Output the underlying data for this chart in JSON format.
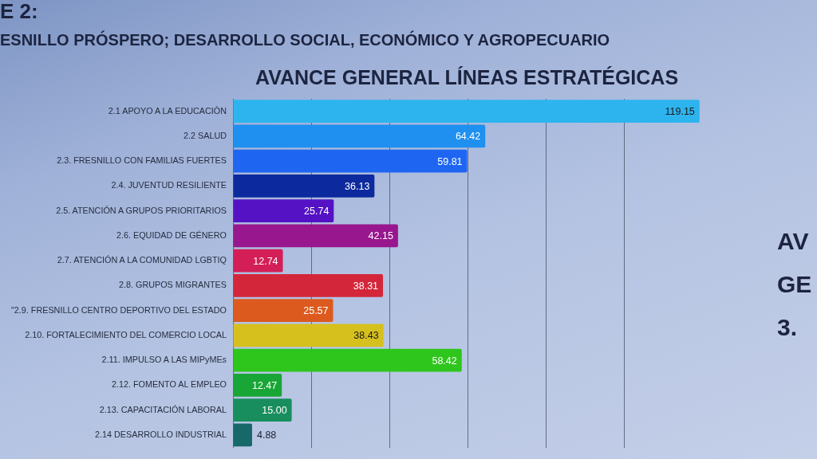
{
  "chart_data": {
    "type": "bar",
    "orientation": "horizontal",
    "title": "AVANCE GENERAL LÍNEAS ESTRATÉGICAS",
    "subtitle": "ESNILLO PRÓSPERO; DESARROLLO SOCIAL, ECONÓMICO Y AGROPECUARIO",
    "annotations": [
      "E 2:",
      "AV",
      "GE",
      "3."
    ],
    "categories": [
      "2.1 APOYO A LA EDUCACIÒN",
      "2.2 SALUD",
      "2.3. FRESNILLO CON FAMILIAS FUERTES",
      "2.4. JUVENTUD RESILIENTE",
      "2.5. ATENCIÓN A GRUPOS PRIORITARIOS",
      "2.6. EQUIDAD DE GÉNERO",
      "2.7. ATENCIÓN A LA COMUNIDAD LGBTIQ",
      "2.8. GRUPOS MIGRANTES",
      "\"2.9. FRESNILLO CENTRO DEPORTIVO DEL ESTADO",
      "2.10. FORTALECIMIENTO DEL COMERCIO LOCAL",
      "2.11. IMPULSO A LAS MIPyMEs",
      "2.12. FOMENTO AL EMPLEO",
      "2.13. CAPACITACIÓN LABORAL",
      "2.14 DESARROLLO INDUSTRIAL"
    ],
    "values": [
      119.15,
      64.42,
      59.81,
      36.13,
      25.74,
      42.15,
      12.74,
      38.31,
      25.57,
      38.43,
      58.42,
      12.47,
      15.0,
      4.88
    ],
    "value_labels": [
      "119.15",
      "64.42",
      "59.81",
      "36.13",
      "25.74",
      "42.15",
      "12.74",
      "38.31",
      "25.57",
      "38.43",
      "58.42",
      "12.47",
      "15.00",
      "4.88"
    ],
    "colors": [
      "#2db4ee",
      "#1f8ff0",
      "#1e66f2",
      "#0c2a9e",
      "#5512c4",
      "#98168e",
      "#d41e58",
      "#d4263a",
      "#dc5a1e",
      "#d6c01e",
      "#2ec61c",
      "#18a636",
      "#188e5e",
      "#176868"
    ],
    "xlim": [
      0,
      120
    ],
    "xticks": [
      {
        "value": 0,
        "label": null
      },
      {
        "value": 20,
        "label": null
      },
      {
        "value": 40,
        "label": null
      },
      {
        "value": 60,
        "label": null
      },
      {
        "value": 80,
        "label": null
      },
      {
        "value": 100,
        "label": null
      }
    ],
    "grid": "x",
    "tick_labels": "y"
  }
}
